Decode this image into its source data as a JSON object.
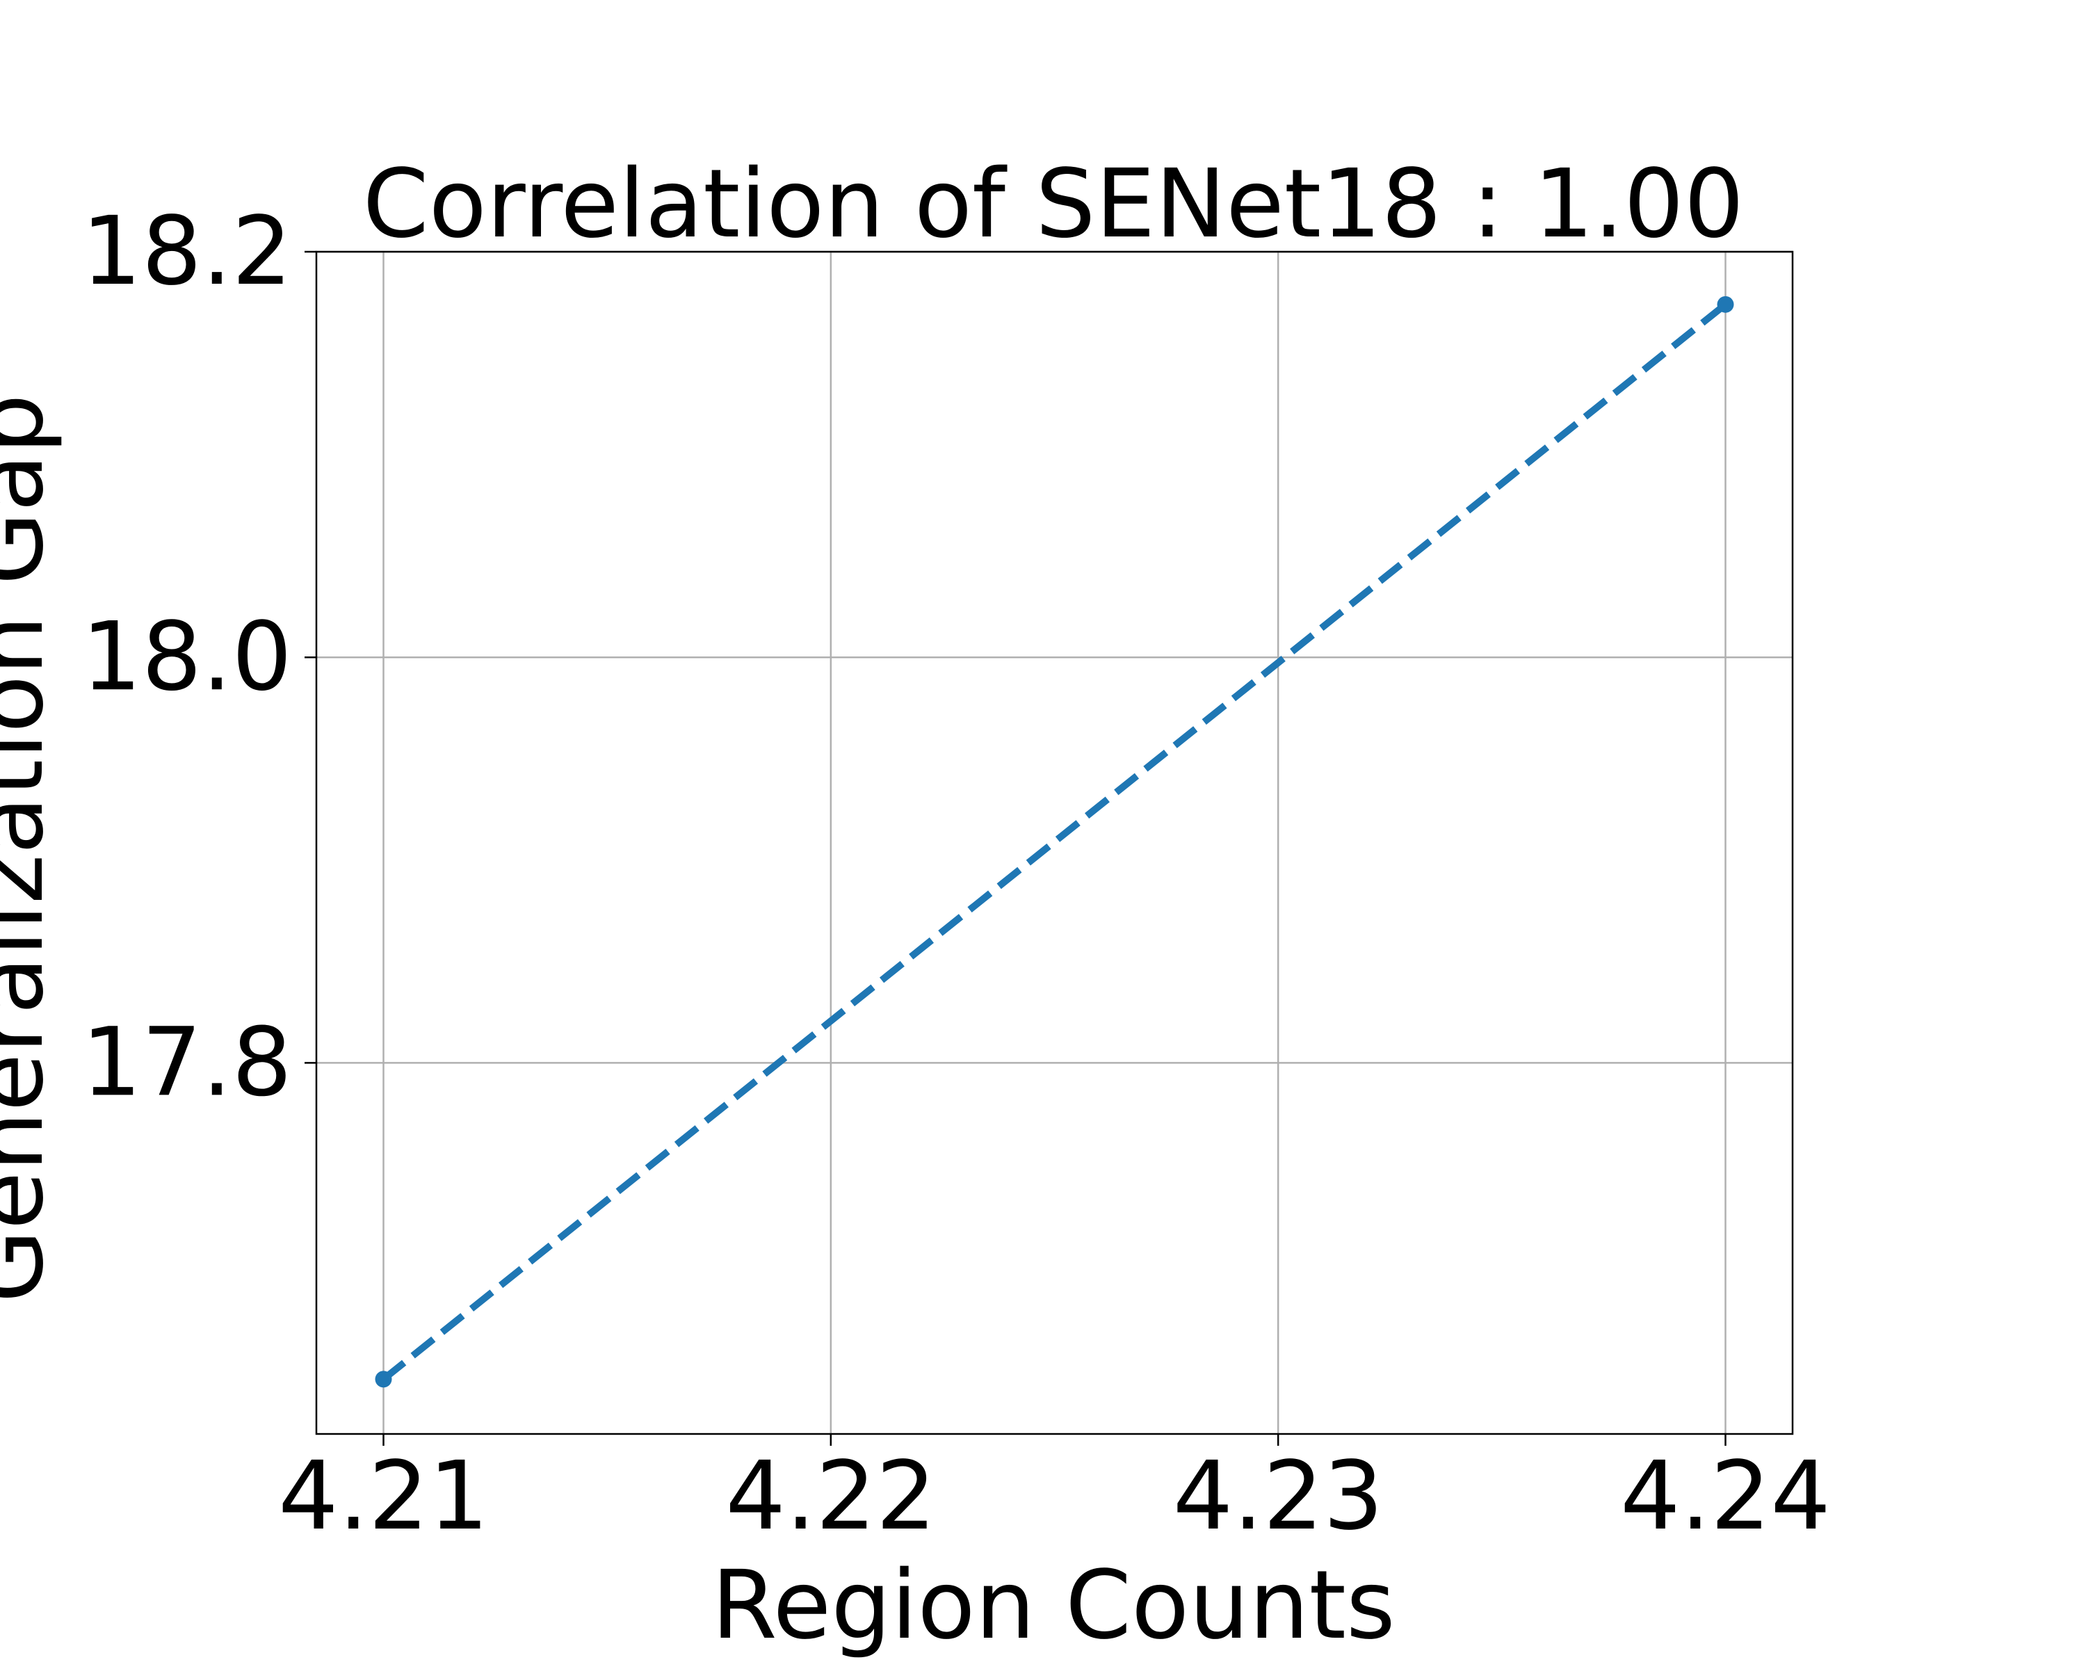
{
  "chart_data": {
    "type": "line",
    "title": "Correlation of SENet18 : 1.00",
    "xlabel": "Region Counts",
    "ylabel": "Generalization Gap",
    "x": [
      4.21,
      4.24
    ],
    "series": [
      {
        "values": [
          17.644,
          18.174
        ],
        "color": "#1f77b4",
        "line_style": "dashed",
        "marker": "circle"
      }
    ],
    "x_ticks": [
      4.21,
      4.22,
      4.23,
      4.24
    ],
    "x_tick_labels": [
      "4.21",
      "4.22",
      "4.23",
      "4.24"
    ],
    "y_ticks": [
      17.8,
      18.0,
      18.2
    ],
    "y_tick_labels": [
      "17.8",
      "18.0",
      "18.2"
    ],
    "xlim": [
      4.2085,
      4.2415
    ],
    "ylim": [
      17.617,
      18.2
    ],
    "grid": true,
    "legend": "none"
  }
}
